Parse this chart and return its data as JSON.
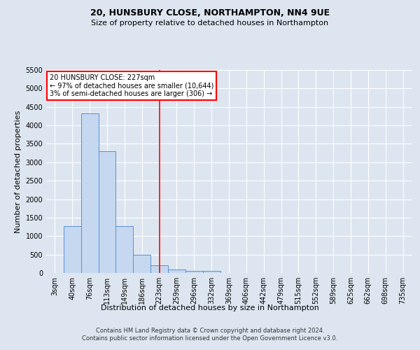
{
  "title_line1": "20, HUNSBURY CLOSE, NORTHAMPTON, NN4 9UE",
  "title_line2": "Size of property relative to detached houses in Northampton",
  "xlabel": "Distribution of detached houses by size in Northampton",
  "ylabel": "Number of detached properties",
  "footer_line1": "Contains HM Land Registry data © Crown copyright and database right 2024.",
  "footer_line2": "Contains public sector information licensed under the Open Government Licence v3.0.",
  "bar_labels": [
    "3sqm",
    "40sqm",
    "76sqm",
    "113sqm",
    "149sqm",
    "186sqm",
    "223sqm",
    "259sqm",
    "296sqm",
    "332sqm",
    "369sqm",
    "406sqm",
    "442sqm",
    "479sqm",
    "515sqm",
    "552sqm",
    "589sqm",
    "625sqm",
    "662sqm",
    "698sqm",
    "735sqm"
  ],
  "bar_values": [
    0,
    1270,
    4330,
    3300,
    1280,
    490,
    210,
    90,
    60,
    60,
    0,
    0,
    0,
    0,
    0,
    0,
    0,
    0,
    0,
    0,
    0
  ],
  "bar_color": "#c5d8f0",
  "bar_edge_color": "#5b8fd4",
  "vline_x_index": 6,
  "vline_color": "red",
  "ylim": [
    0,
    5500
  ],
  "yticks": [
    0,
    500,
    1000,
    1500,
    2000,
    2500,
    3000,
    3500,
    4000,
    4500,
    5000,
    5500
  ],
  "annotation_text_line1": "20 HUNSBURY CLOSE: 227sqm",
  "annotation_text_line2": "← 97% of detached houses are smaller (10,644)",
  "annotation_text_line3": "3% of semi-detached houses are larger (306) →",
  "annotation_box_edgecolor": "red",
  "annotation_box_facecolor": "white",
  "background_color": "#dde6f0",
  "plot_bg_color": "#dde6f0",
  "grid_color": "white",
  "title1_fontsize": 9,
  "title2_fontsize": 8,
  "ylabel_fontsize": 8,
  "xlabel_fontsize": 8,
  "tick_fontsize": 7,
  "footer_fontsize": 6,
  "annotation_fontsize": 7
}
